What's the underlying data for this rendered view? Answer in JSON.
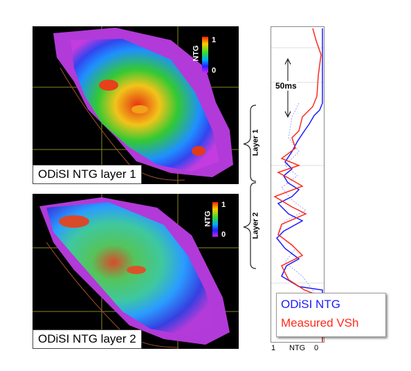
{
  "map_panels": [
    {
      "caption": "ODiSI NTG layer 1",
      "colorbar_label": "NTG",
      "colorbar_max": "1",
      "colorbar_min": "0"
    },
    {
      "caption": "ODiSI NTG layer 2",
      "colorbar_label": "NTG",
      "colorbar_max": "1",
      "colorbar_min": "0"
    }
  ],
  "log": {
    "interval_label": "50ms",
    "layers": [
      "Layer 1",
      "Layer 2"
    ],
    "x_axis": {
      "left_tick": "1",
      "label": "NTG",
      "right_tick": "0"
    },
    "legend": [
      {
        "label": "ODiSI NTG",
        "color": "#1a1aff"
      },
      {
        "label": "Measured VSh",
        "color": "#ff2a1a"
      }
    ]
  },
  "colors": {
    "map_background": "#000000",
    "outline_color": "#a0522d",
    "ntg_high": "#ff0000",
    "ntg_mid": "#33cc33",
    "ntg_low": "#cc33ff",
    "grid_color": "#c8c800"
  }
}
